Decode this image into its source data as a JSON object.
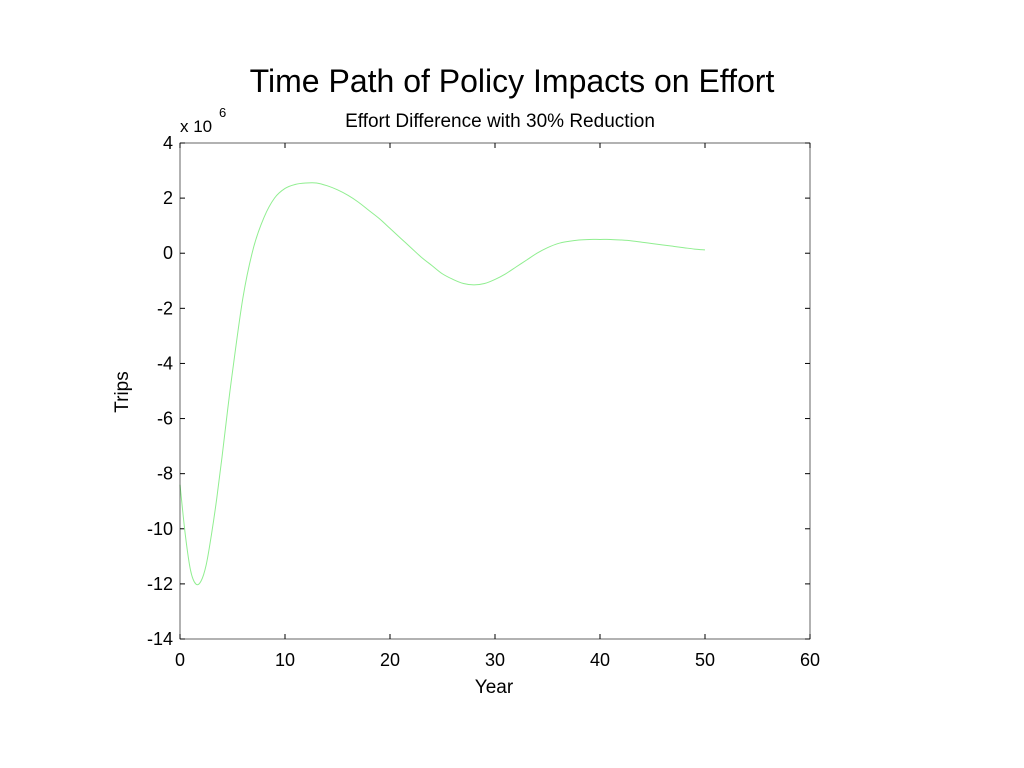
{
  "chart_data": {
    "type": "line",
    "title": "Time Path of Policy Impacts on Effort",
    "subtitle": "Effort Difference with 30% Reduction",
    "xlabel": "Year",
    "ylabel": "Trips",
    "y_scale_base": "x 10",
    "y_scale_exponent": "6",
    "xlim": [
      0,
      60
    ],
    "ylim": [
      -14,
      4
    ],
    "x_ticks": [
      0,
      10,
      20,
      30,
      40,
      50,
      60
    ],
    "y_ticks": [
      -14,
      -12,
      -10,
      -8,
      -6,
      -4,
      -2,
      0,
      2,
      4
    ],
    "grid": false,
    "series": [
      {
        "color": "#90ee90",
        "x": [
          0,
          0.5,
          1,
          1.5,
          2,
          2.5,
          3,
          3.5,
          4,
          4.5,
          5,
          6,
          7,
          8,
          9,
          10,
          11,
          12,
          13,
          14,
          15,
          16,
          17,
          18,
          19,
          20,
          21,
          22,
          23,
          24,
          25,
          26,
          27,
          28,
          29,
          30,
          31,
          32,
          33,
          34,
          35,
          36,
          37,
          38,
          39,
          40,
          41,
          42,
          43,
          44,
          45,
          46,
          47,
          48,
          49,
          50
        ],
        "y": [
          -8.4,
          -10.2,
          -11.5,
          -12.0,
          -11.9,
          -11.3,
          -10.2,
          -8.9,
          -7.4,
          -5.8,
          -4.3,
          -1.6,
          0.2,
          1.3,
          2.0,
          2.35,
          2.5,
          2.55,
          2.55,
          2.45,
          2.3,
          2.1,
          1.85,
          1.55,
          1.25,
          0.9,
          0.55,
          0.2,
          -0.15,
          -0.45,
          -0.75,
          -0.95,
          -1.1,
          -1.15,
          -1.1,
          -0.95,
          -0.75,
          -0.5,
          -0.25,
          0.0,
          0.2,
          0.35,
          0.43,
          0.48,
          0.5,
          0.5,
          0.5,
          0.48,
          0.45,
          0.4,
          0.35,
          0.3,
          0.25,
          0.2,
          0.15,
          0.12
        ]
      }
    ]
  }
}
